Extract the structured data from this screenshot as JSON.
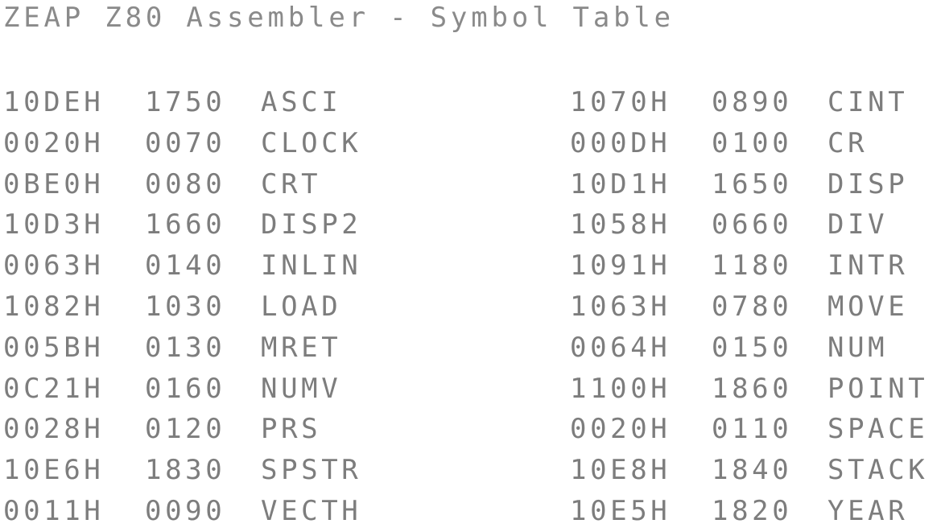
{
  "title": "ZEAP Z80 Assembler - Symbol Table",
  "symbols_left": [
    {
      "address": "10DEH",
      "line": "1750",
      "name": "ASCI"
    },
    {
      "address": "0020H",
      "line": "0070",
      "name": "CLOCK"
    },
    {
      "address": "0BE0H",
      "line": "0080",
      "name": "CRT"
    },
    {
      "address": "10D3H",
      "line": "1660",
      "name": "DISP2"
    },
    {
      "address": "0063H",
      "line": "0140",
      "name": "INLIN"
    },
    {
      "address": "1082H",
      "line": "1030",
      "name": "LOAD"
    },
    {
      "address": "005BH",
      "line": "0130",
      "name": "MRET"
    },
    {
      "address": "0C21H",
      "line": "0160",
      "name": "NUMV"
    },
    {
      "address": "0028H",
      "line": "0120",
      "name": "PRS"
    },
    {
      "address": "10E6H",
      "line": "1830",
      "name": "SPSTR"
    },
    {
      "address": "0011H",
      "line": "0090",
      "name": "VECTH"
    }
  ],
  "symbols_right": [
    {
      "address": "1070H",
      "line": "0890",
      "name": "CINT"
    },
    {
      "address": "000DH",
      "line": "0100",
      "name": "CR"
    },
    {
      "address": "10D1H",
      "line": "1650",
      "name": "DISP"
    },
    {
      "address": "1058H",
      "line": "0660",
      "name": "DIV"
    },
    {
      "address": "1091H",
      "line": "1180",
      "name": "INTR"
    },
    {
      "address": "1063H",
      "line": "0780",
      "name": "MOVE"
    },
    {
      "address": "0064H",
      "line": "0150",
      "name": "NUM"
    },
    {
      "address": "1100H",
      "line": "1860",
      "name": "POINT"
    },
    {
      "address": "0020H",
      "line": "0110",
      "name": "SPACE"
    },
    {
      "address": "10E8H",
      "line": "1840",
      "name": "STACK"
    },
    {
      "address": "10E5H",
      "line": "1820",
      "name": "YEAR"
    }
  ]
}
